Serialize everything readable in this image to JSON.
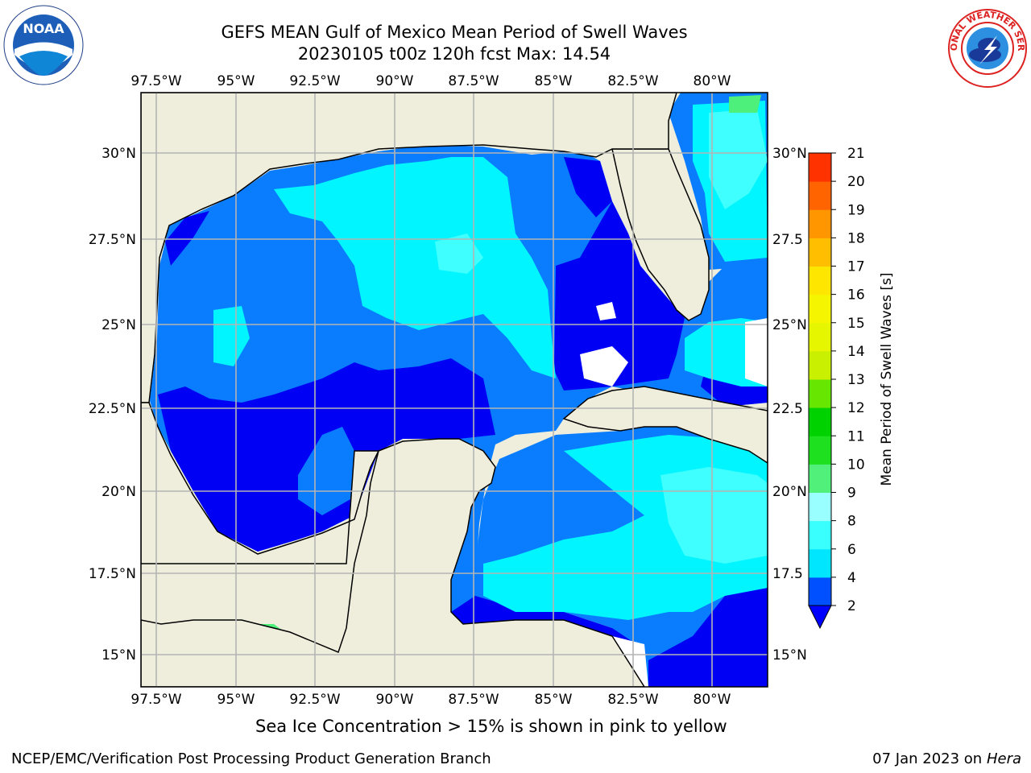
{
  "title": {
    "line1": "GEFS MEAN Gulf of Mexico Mean Period of Swell Waves",
    "line2": "20230105 t00z 120h fcst   Max: 14.54"
  },
  "logos": {
    "left": "noaa-logo-icon",
    "left_text": "NOAA",
    "right": "nws-logo-icon",
    "right_text": "NATIONAL WEATHER SERVICE"
  },
  "axes": {
    "lon_labels": [
      "97.5°W",
      "95°W",
      "92.5°W",
      "90°W",
      "87.5°W",
      "85°W",
      "82.5°W",
      "80°W"
    ],
    "lat_labels_left": [
      "30°N",
      "27.5°N",
      "25°N",
      "22.5°N",
      "20°N",
      "17.5°N",
      "15°N"
    ],
    "lat_labels_right": [
      "30°N",
      "27.5",
      "25°N",
      "22.5",
      "20°N",
      "17.5",
      "15°N"
    ]
  },
  "colorbar": {
    "label": "Mean Period of Swell Waves [s]",
    "levels": [
      "2",
      "4",
      "6",
      "8",
      "9",
      "10",
      "11",
      "12",
      "13",
      "14",
      "15",
      "16",
      "17",
      "18",
      "19",
      "20",
      "21"
    ],
    "colors": [
      "#0050ff",
      "#00e6ff",
      "#39ffff",
      "#99ffff",
      "#50f07a",
      "#1ee01e",
      "#00d200",
      "#66e600",
      "#c8f000",
      "#e6f500",
      "#f5f500",
      "#ffe600",
      "#ffbe00",
      "#ff9600",
      "#ff6400",
      "#ff3200",
      "#ff0000"
    ],
    "extend_color": "#0000ff"
  },
  "map_colors": {
    "land": "#efeedc",
    "period_2_4": "#0a7dff",
    "period_lt_2": "#0000f5",
    "period_4_6": "#00f5ff",
    "period_6_8": "#40ffff",
    "period_8_9": "#9bffff",
    "period_9_10": "#4cf07a",
    "ice_yellow": "#e8ff00",
    "grid": "#b4b4b4"
  },
  "footer": {
    "note": "Sea Ice Concentration > 15% is shown in pink to yellow",
    "left": "NCEP/EMC/Verification Post Processing Product Generation Branch",
    "right_date": "07 Jan 2023 on ",
    "right_host": "Hera"
  }
}
